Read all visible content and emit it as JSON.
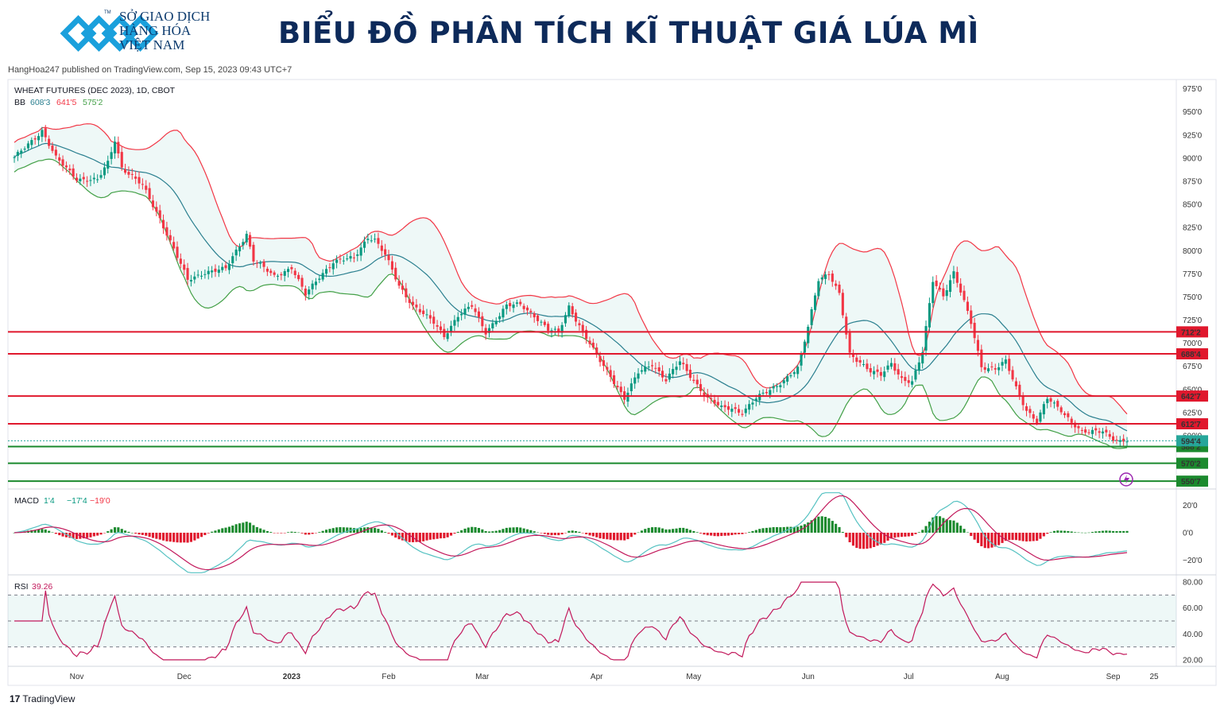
{
  "header": {
    "logo_lines": [
      "SỞ GIAO DỊCH",
      "HÀNG HÓA",
      "VIỆT NAM"
    ],
    "logo_tm": "TM",
    "title": "BIỂU ĐỒ PHÂN TÍCH KĨ THUẬT GIÁ LÚA MÌ",
    "published": "HangHoa247 published on TradingView.com, Sep 15, 2023 09:43 UTC+7"
  },
  "footer": {
    "brand_mark": "17",
    "brand": "TradingView"
  },
  "colors": {
    "up": "#26a69a",
    "up_dark": "#089981",
    "down": "#f23645",
    "bb_upper": "#f23645",
    "bb_basis": "#2a7f8f",
    "bb_lower": "#43a047",
    "resistance": "#e0182d",
    "support": "#1b8a2e",
    "rsi": "#c2185b",
    "macd_line": "#56c2c2",
    "signal_line": "#c2185b"
  },
  "chart_data": [
    {
      "type": "candlestick",
      "symbol_label": "WHEAT FUTURES (DEC 2023), 1D, CBOT",
      "bb_label": "BB",
      "bb_values": [
        "608'3",
        "641'5",
        "575'2"
      ],
      "y_ticks": [
        "975'0",
        "950'0",
        "925'0",
        "900'0",
        "875'0",
        "850'0",
        "825'0",
        "800'0",
        "775'0",
        "750'0",
        "725'0",
        "700'0",
        "675'0",
        "650'0",
        "625'0",
        "600'0"
      ],
      "ylim": [
        545,
        985
      ],
      "x_ticks": [
        "Nov",
        "Dec",
        "2023",
        "Feb",
        "Mar",
        "Apr",
        "May",
        "Jun",
        "Jul",
        "Aug",
        "Sep",
        "25"
      ],
      "resistance_levels": [
        {
          "label": "712'2",
          "value": 712.25
        },
        {
          "label": "688'4",
          "value": 688.5
        },
        {
          "label": "642'7",
          "value": 642.875
        },
        {
          "label": "612'7",
          "value": 612.875
        }
      ],
      "current_price": {
        "label": "594'4",
        "value": 594.5
      },
      "support_levels": [
        {
          "label": "588'2",
          "value": 588.25
        },
        {
          "label": "570'2",
          "value": 570.25
        },
        {
          "label": "550'7",
          "value": 550.875
        }
      ],
      "close_anchors": [
        [
          0,
          900
        ],
        [
          8,
          930
        ],
        [
          12,
          900
        ],
        [
          18,
          878
        ],
        [
          24,
          876
        ],
        [
          27,
          895
        ],
        [
          29,
          920
        ],
        [
          31,
          890
        ],
        [
          37,
          870
        ],
        [
          42,
          835
        ],
        [
          50,
          768
        ],
        [
          55,
          777
        ],
        [
          61,
          780
        ],
        [
          64,
          800
        ],
        [
          67,
          818
        ],
        [
          69,
          790
        ],
        [
          75,
          772
        ],
        [
          80,
          782
        ],
        [
          84,
          752
        ],
        [
          88,
          772
        ],
        [
          92,
          788
        ],
        [
          98,
          792
        ],
        [
          102,
          815
        ],
        [
          104,
          812
        ],
        [
          107,
          795
        ],
        [
          111,
          762
        ],
        [
          115,
          741
        ],
        [
          121,
          722
        ],
        [
          124,
          708
        ],
        [
          128,
          730
        ],
        [
          132,
          740
        ],
        [
          136,
          712
        ],
        [
          142,
          740
        ],
        [
          146,
          742
        ],
        [
          150,
          730
        ],
        [
          154,
          714
        ],
        [
          157,
          712
        ],
        [
          160,
          740
        ],
        [
          164,
          712
        ],
        [
          168,
          686
        ],
        [
          172,
          665
        ],
        [
          176,
          640
        ],
        [
          180,
          668
        ],
        [
          184,
          678
        ],
        [
          188,
          660
        ],
        [
          192,
          680
        ],
        [
          196,
          660
        ],
        [
          200,
          640
        ],
        [
          204,
          630
        ],
        [
          207,
          630
        ],
        [
          210,
          625
        ],
        [
          214,
          640
        ],
        [
          218,
          650
        ],
        [
          222,
          660
        ],
        [
          226,
          672
        ],
        [
          229,
          718
        ],
        [
          232,
          770
        ],
        [
          235,
          775
        ],
        [
          238,
          752
        ],
        [
          241,
          688
        ],
        [
          244,
          680
        ],
        [
          247,
          670
        ],
        [
          250,
          665
        ],
        [
          253,
          678
        ],
        [
          256,
          662
        ],
        [
          259,
          658
        ],
        [
          262,
          690
        ],
        [
          265,
          768
        ],
        [
          268,
          752
        ],
        [
          271,
          776
        ],
        [
          273,
          755
        ],
        [
          276,
          722
        ],
        [
          279,
          675
        ],
        [
          283,
          672
        ],
        [
          286,
          680
        ],
        [
          289,
          652
        ],
        [
          292,
          628
        ],
        [
          295,
          615
        ],
        [
          298,
          640
        ],
        [
          302,
          628
        ],
        [
          305,
          615
        ],
        [
          308,
          603
        ],
        [
          311,
          604
        ],
        [
          314,
          606
        ],
        [
          317,
          597
        ],
        [
          319,
          593
        ],
        [
          321,
          594
        ]
      ],
      "n_days": 322
    },
    {
      "type": "histogram+line",
      "label": "MACD",
      "values": [
        "1'4",
        "−17'4",
        "−19'0"
      ],
      "y_ticks": [
        "20'0",
        "0'0",
        "−20'0"
      ],
      "ylim": [
        -30,
        30
      ]
    },
    {
      "type": "line",
      "label": "RSI",
      "values": [
        "39.26"
      ],
      "y_ticks": [
        "80.00",
        "60.00",
        "40.00",
        "20.00"
      ],
      "ylim": [
        15,
        85
      ],
      "band": [
        30,
        70
      ],
      "midline": 50
    }
  ]
}
